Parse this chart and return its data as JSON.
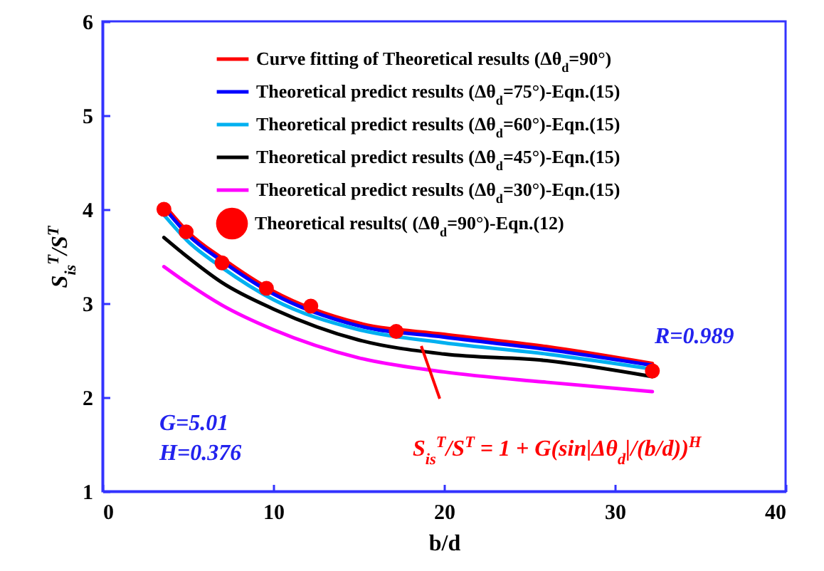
{
  "chart_data": {
    "type": "line",
    "xlabel": "b/d",
    "ylabel": "S$_{is}$$^{T}$/S$^{T}$",
    "x": [
      3.6,
      5,
      7,
      10,
      15,
      20,
      26,
      32.2
    ],
    "xlim": [
      0,
      40
    ],
    "xticks": [
      0,
      10,
      20,
      30,
      40
    ],
    "ylim": [
      1,
      6
    ],
    "yticks": [
      1,
      2,
      3,
      4,
      5,
      6
    ],
    "legend": "top right",
    "grid": false,
    "series": [
      {
        "name": "Curve fitting of Theoretical results (Δθ$_{d}$=90°)",
        "color": "#ff0000",
        "values": [
          4.05,
          3.76,
          3.48,
          3.13,
          2.79,
          2.67,
          2.54,
          2.36
        ]
      },
      {
        "name": "Theoretical predict results (Δθ$_{d}$=75°)-Eqn.(15)",
        "color": "#0000ff",
        "values": [
          4.02,
          3.73,
          3.45,
          3.1,
          2.76,
          2.64,
          2.51,
          2.34
        ]
      },
      {
        "name": "Theoretical predict results (Δθ$_{d}$=60°)-Eqn.(15)",
        "color": "#00b0f0",
        "values": [
          3.94,
          3.66,
          3.38,
          3.04,
          2.72,
          2.58,
          2.46,
          2.3
        ]
      },
      {
        "name": "Theoretical predict results (Δθ$_{d}$=45°)-Eqn.(15)",
        "color": "#000000",
        "values": [
          3.7,
          3.49,
          3.22,
          2.94,
          2.61,
          2.46,
          2.39,
          2.22
        ]
      },
      {
        "name": "Theoretical predict results (Δθ$_{d}$=30°)-Eqn.(15)",
        "color": "#ff00ff",
        "values": [
          3.39,
          3.21,
          2.98,
          2.72,
          2.42,
          2.27,
          2.16,
          2.06
        ]
      },
      {
        "name": "Theoretical results( (Δθ$_{d}$=90°)-Eqn.(12)",
        "type": "scatter",
        "marker": "circle",
        "color": "#ff0000",
        "x": [
          3.6,
          4.9,
          7,
          9.6,
          12.2,
          17.2,
          32.2
        ],
        "values": [
          4.0,
          3.76,
          3.43,
          3.16,
          2.97,
          2.7,
          2.28
        ]
      }
    ],
    "annotations": [
      "G=5.01",
      "H=0.376",
      "R=0.989",
      "S$_{is}$$^{T}$/S$^{T}$ = 1 + G(sin|Δθ$_{d}$|/(b/d))$^{H}$"
    ]
  }
}
